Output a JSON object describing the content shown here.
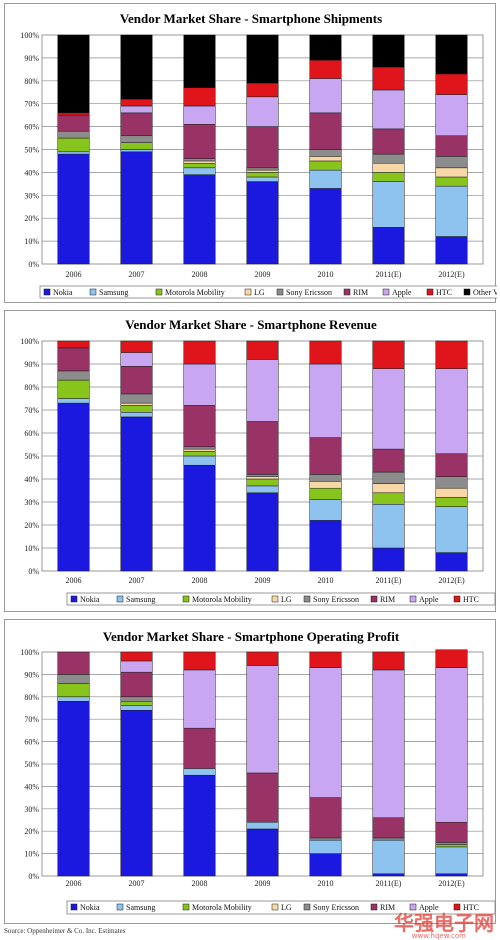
{
  "vendors": [
    {
      "name": "Nokia",
      "color": "#1b19e0"
    },
    {
      "name": "Samsung",
      "color": "#8ec3ef"
    },
    {
      "name": "Motorola Mobility",
      "color": "#88c51c"
    },
    {
      "name": "LG",
      "color": "#f7d7a6"
    },
    {
      "name": "Sony Ericsson",
      "color": "#8c8c8c"
    },
    {
      "name": "RIM",
      "color": "#993366"
    },
    {
      "name": "Apple",
      "color": "#c9a6f2"
    },
    {
      "name": "HTC",
      "color": "#e0141b"
    },
    {
      "name": "Other Vendors",
      "color": "#000000"
    }
  ],
  "chart_data": [
    {
      "type": "bar",
      "stacked": true,
      "title": "Vendor Market Share - Smartphone Shipments",
      "categories": [
        "2006",
        "2007",
        "2008",
        "2009",
        "2010",
        "2011(E)",
        "2012(E)"
      ],
      "ylim": [
        0,
        100
      ],
      "yticks": [
        "0%",
        "10%",
        "20%",
        "30%",
        "40%",
        "50%",
        "60%",
        "70%",
        "80%",
        "90%",
        "100%"
      ],
      "grid": true,
      "legend_position": "bottom",
      "series": [
        {
          "name": "Nokia",
          "values": [
            48,
            49,
            39,
            36,
            33,
            16,
            12
          ]
        },
        {
          "name": "Samsung",
          "values": [
            1,
            1,
            3,
            2,
            8,
            20,
            22
          ]
        },
        {
          "name": "Motorola Mobility",
          "values": [
            6,
            3,
            2,
            2,
            4,
            4,
            4
          ]
        },
        {
          "name": "LG",
          "values": [
            0,
            0,
            1,
            1,
            2,
            4,
            4
          ]
        },
        {
          "name": "Sony Ericsson",
          "values": [
            3,
            3,
            1,
            1,
            3,
            4,
            5
          ]
        },
        {
          "name": "RIM",
          "values": [
            7,
            10,
            15,
            18,
            16,
            11,
            9
          ]
        },
        {
          "name": "Apple",
          "values": [
            0,
            3,
            8,
            13,
            15,
            17,
            18
          ]
        },
        {
          "name": "HTC",
          "values": [
            1,
            3,
            8,
            6,
            8,
            10,
            9
          ]
        },
        {
          "name": "Other Vendors",
          "values": [
            34,
            28,
            23,
            21,
            11,
            14,
            17
          ]
        }
      ]
    },
    {
      "type": "bar",
      "stacked": true,
      "title": "Vendor Market Share - Smartphone Revenue",
      "categories": [
        "2006",
        "2007",
        "2008",
        "2009",
        "2010",
        "2011(E)",
        "2012(E)"
      ],
      "ylim": [
        0,
        100
      ],
      "yticks": [
        "0%",
        "10%",
        "20%",
        "30%",
        "40%",
        "50%",
        "60%",
        "70%",
        "80%",
        "90%",
        "100%"
      ],
      "grid": true,
      "legend_position": "bottom",
      "series": [
        {
          "name": "Nokia",
          "values": [
            73,
            67,
            46,
            34,
            22,
            10,
            8
          ]
        },
        {
          "name": "Samsung",
          "values": [
            2,
            2,
            4,
            3,
            9,
            19,
            20
          ]
        },
        {
          "name": "Motorola Mobility",
          "values": [
            8,
            3,
            2,
            3,
            5,
            5,
            4
          ]
        },
        {
          "name": "LG",
          "values": [
            0,
            1,
            1,
            1,
            3,
            4,
            4
          ]
        },
        {
          "name": "Sony Ericsson",
          "values": [
            4,
            4,
            1,
            1,
            3,
            5,
            5
          ]
        },
        {
          "name": "RIM",
          "values": [
            10,
            12,
            18,
            23,
            16,
            10,
            10
          ]
        },
        {
          "name": "Apple",
          "values": [
            0,
            6,
            18,
            27,
            32,
            35,
            37
          ]
        },
        {
          "name": "HTC",
          "values": [
            3,
            5,
            10,
            8,
            10,
            12,
            12
          ]
        }
      ]
    },
    {
      "type": "bar",
      "stacked": true,
      "title": "Vendor Market Share - Smartphone Operating Profit",
      "categories": [
        "2006",
        "2007",
        "2008",
        "2009",
        "2010",
        "2011(E)",
        "2012(E)"
      ],
      "ylim": [
        0,
        100
      ],
      "yticks": [
        "0%",
        "10%",
        "20%",
        "30%",
        "40%",
        "50%",
        "60%",
        "70%",
        "80%",
        "90%",
        "100%"
      ],
      "grid": true,
      "legend_position": "bottom",
      "series": [
        {
          "name": "Nokia",
          "values": [
            78,
            74,
            45,
            21,
            10,
            1,
            1
          ]
        },
        {
          "name": "Samsung",
          "values": [
            2,
            2,
            3,
            3,
            6,
            15,
            12
          ]
        },
        {
          "name": "Motorola Mobility",
          "values": [
            6,
            2,
            0,
            0,
            0,
            0,
            1
          ]
        },
        {
          "name": "LG",
          "values": [
            0,
            0,
            0,
            0,
            0,
            0,
            0
          ]
        },
        {
          "name": "Sony Ericsson",
          "values": [
            4,
            2,
            0,
            0,
            1,
            1,
            1
          ]
        },
        {
          "name": "RIM",
          "values": [
            10,
            11,
            18,
            22,
            18,
            9,
            9
          ]
        },
        {
          "name": "Apple",
          "values": [
            0,
            5,
            26,
            48,
            58,
            66,
            69
          ]
        },
        {
          "name": "HTC",
          "values": [
            0,
            4,
            8,
            6,
            7,
            8,
            8
          ]
        }
      ]
    }
  ],
  "source": "Source: Oppenheimer & Co. Inc. Estimates",
  "watermark": "华强电子网",
  "watermark_url": "www.hqew.com"
}
